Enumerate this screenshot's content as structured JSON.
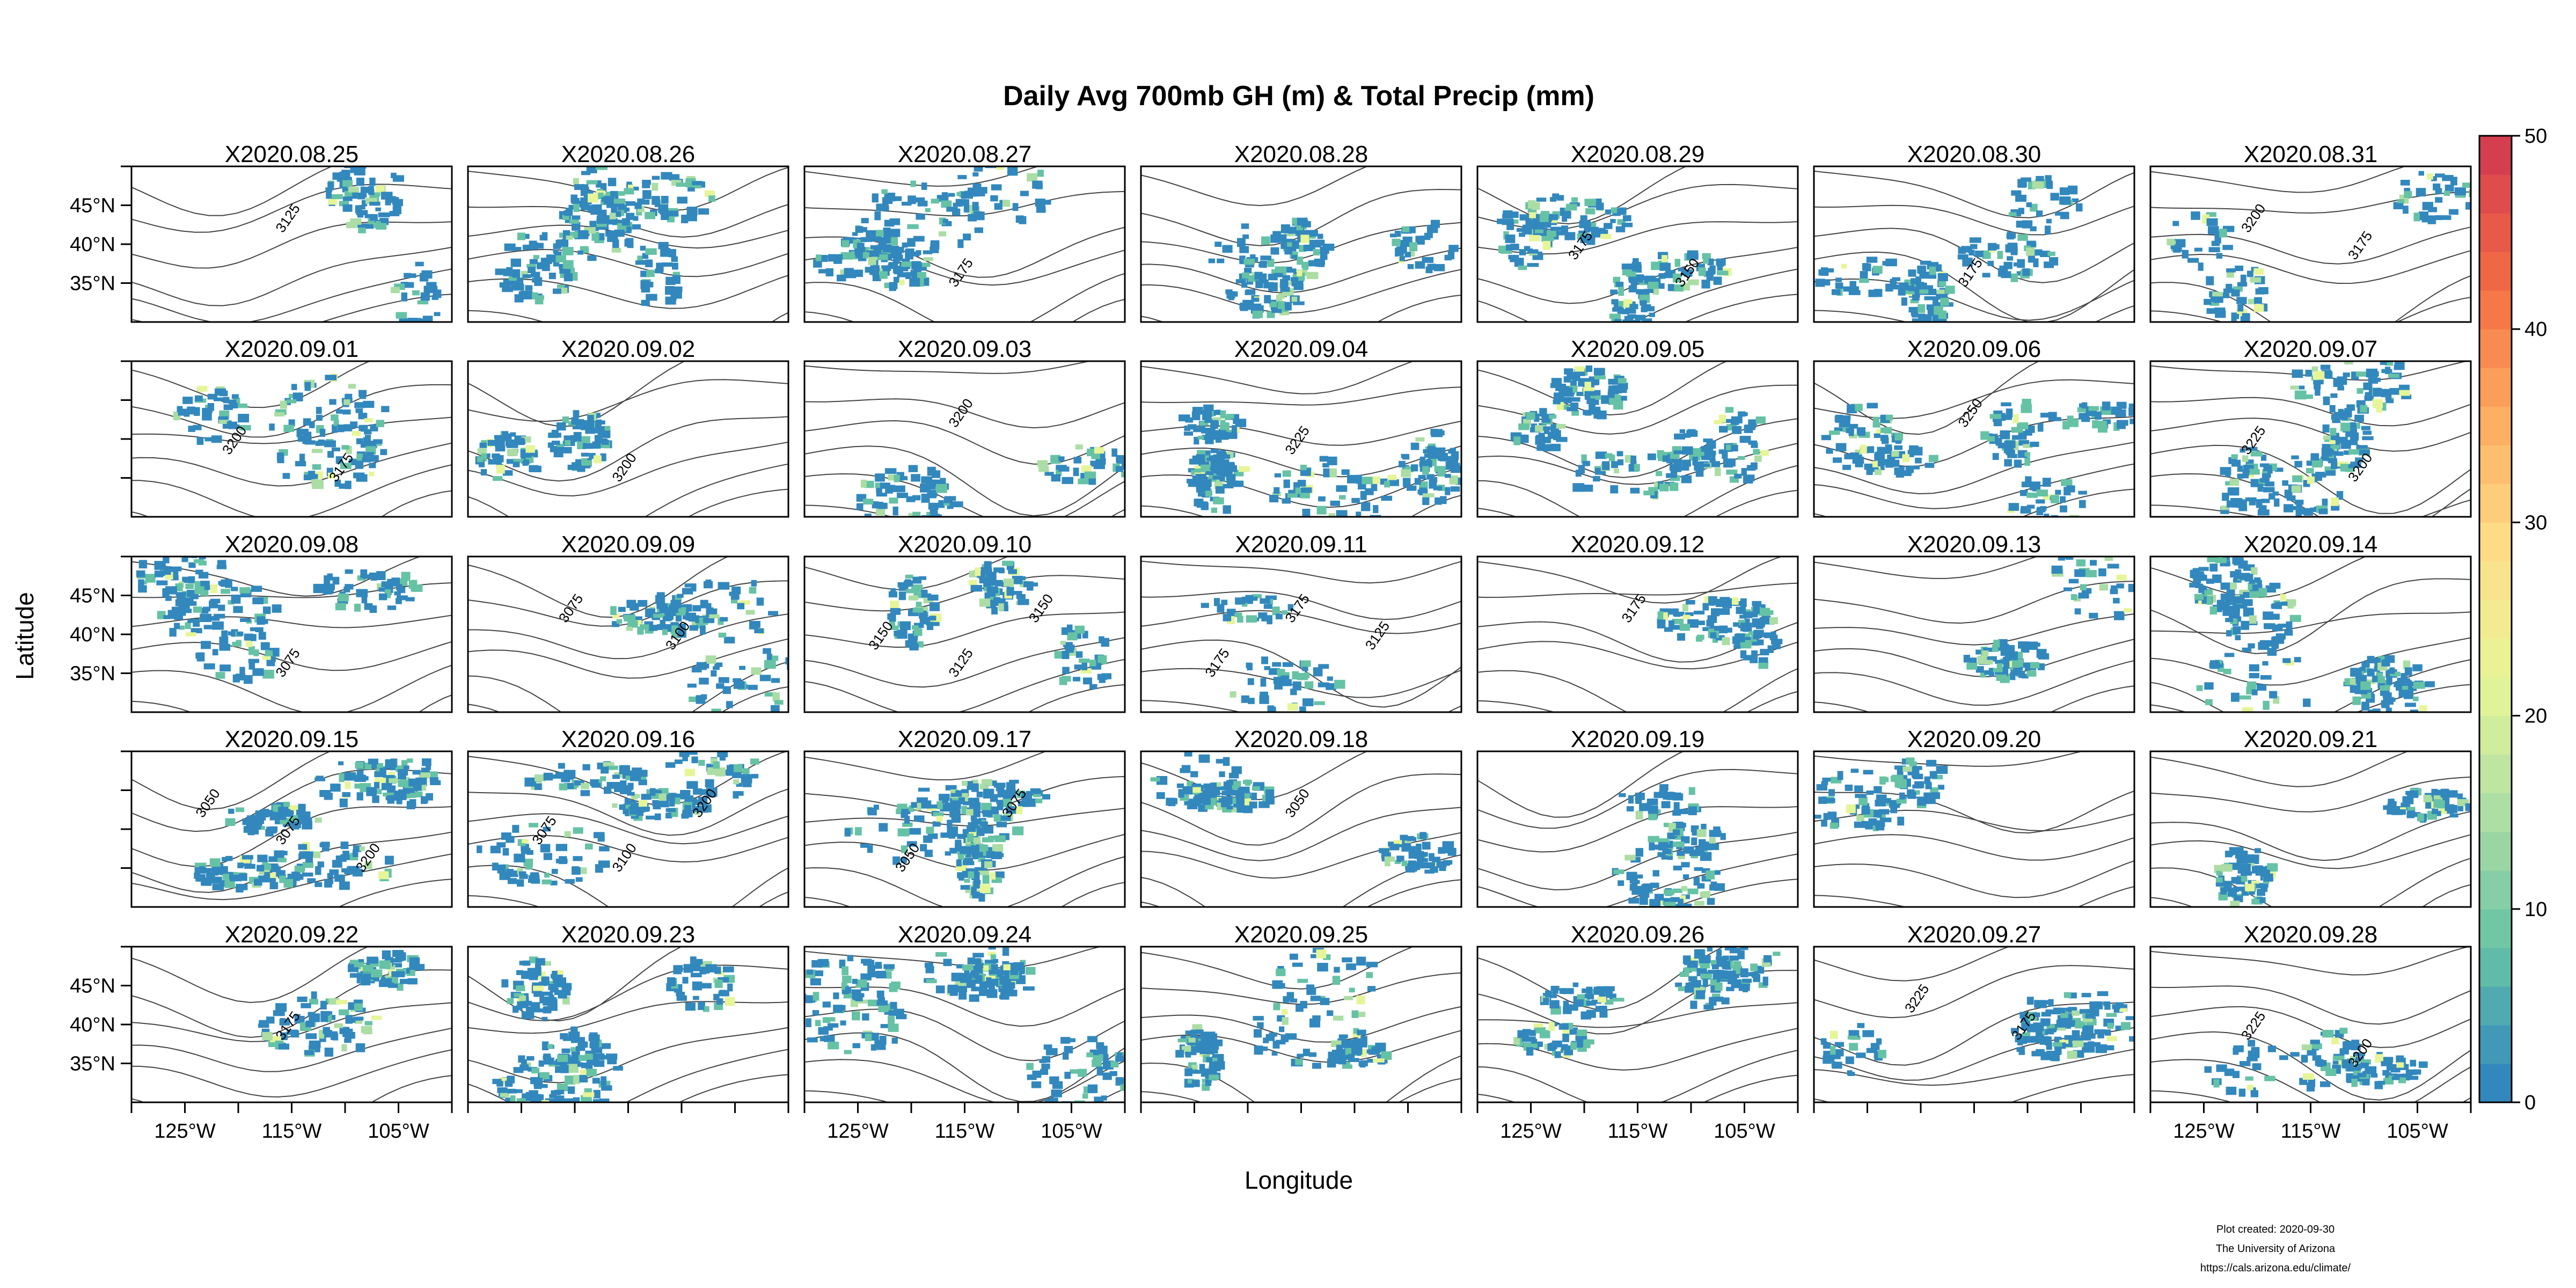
{
  "figure": {
    "title": "Daily Avg 700mb GH (m) & Total Precip (mm)",
    "xlabel": "Longitude",
    "ylabel": "Latitude",
    "credits": [
      "Plot created: 2020-09-30",
      "The University of Arizona",
      "https://cals.arizona.edu/climate/"
    ]
  },
  "chart_data": {
    "type": "heatmap",
    "title": "Daily Avg 700mb GH (m) & Total Precip (mm)",
    "xlabel": "Longitude",
    "ylabel": "Latitude",
    "x_ticks": [
      "125°W",
      "115°W",
      "105°W"
    ],
    "y_ticks": [
      "45°N",
      "40°N",
      "35°N"
    ],
    "grid": "5 rows x 7 columns",
    "colorbar": {
      "min": 0,
      "max": 50,
      "ticks": [
        "0",
        "10",
        "20",
        "30",
        "40",
        "50"
      ],
      "colors": [
        "#3288bd",
        "#66c2a5",
        "#abdda4",
        "#e6f598",
        "#fee08b",
        "#fdae61",
        "#f46d43",
        "#d53e4f"
      ]
    },
    "panels": [
      {
        "label": "X2020.08.25",
        "contours": [
          "3125"
        ]
      },
      {
        "label": "X2020.08.26",
        "contours": []
      },
      {
        "label": "X2020.08.27",
        "contours": [
          "3175"
        ]
      },
      {
        "label": "X2020.08.28",
        "contours": []
      },
      {
        "label": "X2020.08.29",
        "contours": [
          "3175",
          "3150"
        ]
      },
      {
        "label": "X2020.08.30",
        "contours": [
          "3175"
        ]
      },
      {
        "label": "X2020.08.31",
        "contours": [
          "3200",
          "3175"
        ]
      },
      {
        "label": "X2020.09.01",
        "contours": [
          "3200",
          "3175"
        ]
      },
      {
        "label": "X2020.09.02",
        "contours": [
          "3200"
        ]
      },
      {
        "label": "X2020.09.03",
        "contours": [
          "3200"
        ]
      },
      {
        "label": "X2020.09.04",
        "contours": [
          "3225"
        ]
      },
      {
        "label": "X2020.09.05",
        "contours": []
      },
      {
        "label": "X2020.09.06",
        "contours": [
          "3250"
        ]
      },
      {
        "label": "X2020.09.07",
        "contours": [
          "3225",
          "3200"
        ]
      },
      {
        "label": "X2020.09.08",
        "contours": [
          "3075"
        ]
      },
      {
        "label": "X2020.09.09",
        "contours": [
          "3075",
          "3100"
        ]
      },
      {
        "label": "X2020.09.10",
        "contours": [
          "3150",
          "3125",
          "3150"
        ]
      },
      {
        "label": "X2020.09.11",
        "contours": [
          "3175",
          "3175",
          "3125"
        ]
      },
      {
        "label": "X2020.09.12",
        "contours": [
          "3175"
        ]
      },
      {
        "label": "X2020.09.13",
        "contours": []
      },
      {
        "label": "X2020.09.14",
        "contours": []
      },
      {
        "label": "X2020.09.15",
        "contours": [
          "3050",
          "3075",
          "3200"
        ]
      },
      {
        "label": "X2020.09.16",
        "contours": [
          "3075",
          "3100",
          "3200"
        ]
      },
      {
        "label": "X2020.09.17",
        "contours": [
          "3050",
          "3075"
        ]
      },
      {
        "label": "X2020.09.18",
        "contours": [
          "3050"
        ]
      },
      {
        "label": "X2020.09.19",
        "contours": []
      },
      {
        "label": "X2020.09.20",
        "contours": []
      },
      {
        "label": "X2020.09.21",
        "contours": []
      },
      {
        "label": "X2020.09.22",
        "contours": [
          "3175"
        ]
      },
      {
        "label": "X2020.09.23",
        "contours": []
      },
      {
        "label": "X2020.09.24",
        "contours": []
      },
      {
        "label": "X2020.09.25",
        "contours": []
      },
      {
        "label": "X2020.09.26",
        "contours": []
      },
      {
        "label": "X2020.09.27",
        "contours": [
          "3225",
          "3175"
        ]
      },
      {
        "label": "X2020.09.28",
        "contours": [
          "3225",
          "3200"
        ]
      }
    ]
  }
}
